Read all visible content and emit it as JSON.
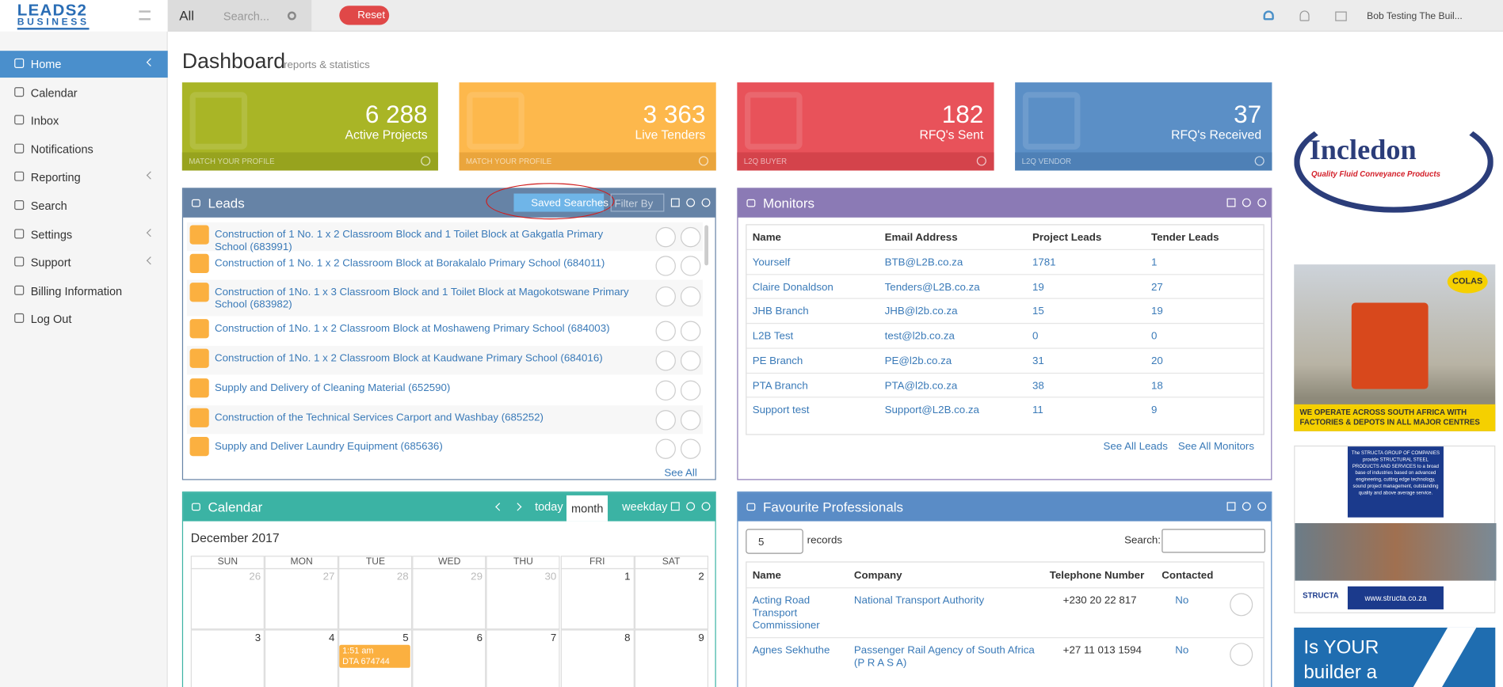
{
  "header": {
    "logo_top": "LEADS2",
    "logo_bottom": "BUSINESS",
    "filter": "All",
    "search_placeholder": "Search...",
    "reset": "Reset",
    "user": "Bob Testing The Buil..."
  },
  "sidebar": {
    "items": [
      "Home",
      "Calendar",
      "Inbox",
      "Notifications",
      "Reporting",
      "Search",
      "Settings",
      "Support",
      "Billing Information",
      "Log Out"
    ]
  },
  "page": {
    "title": "Dashboard",
    "subtitle": "reports & statistics"
  },
  "stats": [
    {
      "value": "6 288",
      "label": "Active Projects",
      "footer": "MATCH YOUR PROFILE"
    },
    {
      "value": "3 363",
      "label": "Live Tenders",
      "footer": "MATCH YOUR PROFILE"
    },
    {
      "value": "182",
      "label": "RFQ's Sent",
      "footer": "L2Q BUYER"
    },
    {
      "value": "37",
      "label": "RFQ's Received",
      "footer": "L2Q VENDOR"
    }
  ],
  "leads": {
    "title": "Leads",
    "saved_searches": "Saved Searches",
    "filter": "Filter By",
    "items": [
      "Construction of 1 No. 1 x 2 Classroom Block and 1 Toilet Block at Gakgatla Primary School (683991)",
      "Construction of 1 No. 1 x 2 Classroom Block at Borakalalo Primary School (684011)",
      "Construction of 1No. 1 x 3 Classroom Block and 1 Toilet Block at Magokotswane Primary School (683982)",
      "Construction of 1No. 1 x 2 Classroom Block at Moshaweng Primary School (684003)",
      "Construction of 1No. 1 x 2 Classroom Block at Kaudwane Primary School (684016)",
      "Supply and Delivery of Cleaning Material (652590)",
      "Construction of the Technical Services Carport and Washbay (685252)",
      "Supply and Deliver Laundry Equipment (685636)"
    ],
    "see_all": "See All"
  },
  "monitors": {
    "title": "Monitors",
    "columns": [
      "Name",
      "Email Address",
      "Project Leads",
      "Tender Leads"
    ],
    "rows": [
      [
        "Yourself",
        "BTB@L2B.co.za",
        1781,
        1
      ],
      [
        "Claire Donaldson",
        "Tenders@L2B.co.za",
        19,
        27
      ],
      [
        "JHB Branch",
        "JHB@l2b.co.za",
        15,
        19
      ],
      [
        "L2B Test",
        "test@l2b.co.za",
        0,
        0
      ],
      [
        "PE Branch",
        "PE@l2b.co.za",
        31,
        20
      ],
      [
        "PTA Branch",
        "PTA@l2b.co.za",
        38,
        18
      ],
      [
        "Support test",
        "Support@L2B.co.za",
        11,
        9
      ]
    ],
    "see_all_leads": "See All Leads",
    "see_all_monitors": "See All Monitors"
  },
  "calendar": {
    "title": "Calendar",
    "buttons": [
      "today",
      "month",
      "week",
      "day"
    ],
    "month": "December 2017",
    "weekdays": [
      "SUN",
      "MON",
      "TUE",
      "WED",
      "THU",
      "FRI",
      "SAT"
    ],
    "weeks": [
      [
        26,
        27,
        28,
        29,
        30,
        1,
        2
      ],
      [
        3,
        4,
        5,
        6,
        7,
        8,
        9
      ]
    ],
    "event": {
      "time": "1:51 am",
      "label": "DTA 674744"
    }
  },
  "favourites": {
    "title": "Favourite Professionals",
    "length": "5",
    "records": "records",
    "search": "Search:",
    "columns": [
      "Name",
      "Company",
      "Telephone Number",
      "Contacted"
    ],
    "rows": [
      [
        "Acting Road Transport Commissioner",
        "National Transport Authority",
        "+230 20 22 817",
        "No"
      ],
      [
        "Agnes Sekhuthe",
        "Passenger Rail Agency of South Africa (P R A S A)",
        "+27 11 013 1594",
        "No"
      ]
    ]
  },
  "ads": {
    "incledon": {
      "name": "Incledon",
      "tagline": "Quality Fluid Conveyance Products"
    },
    "colas": {
      "brand": "COLAS",
      "text": "WE OPERATE ACROSS SOUTH AFRICA WITH FACTORIES & DEPOTS IN ALL MAJOR CENTRES"
    },
    "structa": {
      "text": "The STRUCTA GROUP OF COMPANIES provide STRUCTURAL STEEL PRODUCTS AND SERVICES to a broad base of industries based on advanced engineering, cutting edge technology, sound project management, outstanding quality and above average service.",
      "brand": "STRUCTA",
      "url": "www.structa.co.za"
    },
    "last": {
      "text": "Is YOUR builder a"
    }
  }
}
